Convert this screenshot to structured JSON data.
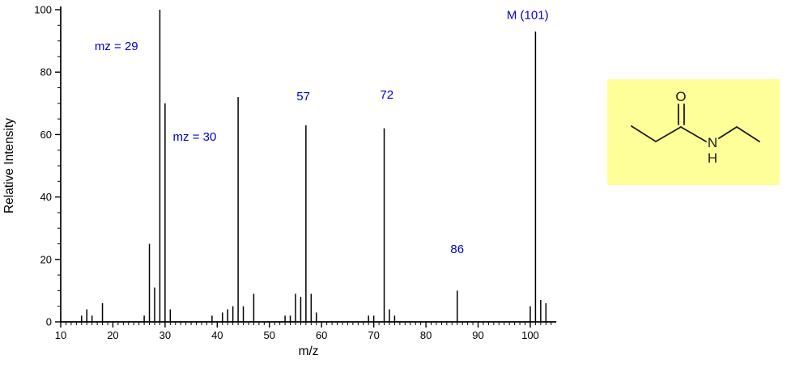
{
  "chart_data": {
    "type": "bar",
    "subtype": "mass-spectrum",
    "title": "",
    "xlabel": "m/z",
    "ylabel": "Relative Intensity",
    "xlim": [
      10,
      105
    ],
    "ylim": [
      0,
      100
    ],
    "x_ticks": [
      10,
      20,
      30,
      40,
      50,
      60,
      70,
      80,
      90,
      100
    ],
    "y_ticks": [
      0,
      20,
      40,
      60,
      80,
      100
    ],
    "x_minor_step": 1,
    "y_minor_step": 5,
    "grid": false,
    "legend": false,
    "axis_color": "#000000",
    "peak_color": "#000000",
    "annotation_color": "#0000cc",
    "peaks": [
      [
        14,
        2
      ],
      [
        15,
        4
      ],
      [
        16,
        2
      ],
      [
        18,
        6
      ],
      [
        26,
        2
      ],
      [
        27,
        25
      ],
      [
        28,
        11
      ],
      [
        29,
        100
      ],
      [
        30,
        70
      ],
      [
        31,
        4
      ],
      [
        39,
        2
      ],
      [
        41,
        3
      ],
      [
        42,
        4
      ],
      [
        43,
        5
      ],
      [
        44,
        72
      ],
      [
        45,
        5
      ],
      [
        47,
        9
      ],
      [
        53,
        2
      ],
      [
        54,
        2
      ],
      [
        55,
        9
      ],
      [
        56,
        8
      ],
      [
        57,
        63
      ],
      [
        58,
        9
      ],
      [
        59,
        3
      ],
      [
        69,
        2
      ],
      [
        70,
        2
      ],
      [
        72,
        62
      ],
      [
        73,
        4
      ],
      [
        74,
        2
      ],
      [
        86,
        10
      ],
      [
        100,
        5
      ],
      [
        101,
        93
      ],
      [
        102,
        7
      ],
      [
        103,
        6
      ]
    ],
    "annotations": [
      {
        "text": "mz = 29",
        "x": 16.5,
        "y": 87,
        "anchor": "start"
      },
      {
        "text": "mz = 30",
        "x": 31.5,
        "y": 58,
        "anchor": "start"
      },
      {
        "text": "57",
        "x": 56.5,
        "y": 71,
        "anchor": "middle"
      },
      {
        "text": "72",
        "x": 72.5,
        "y": 71.5,
        "anchor": "middle"
      },
      {
        "text": "86",
        "x": 86,
        "y": 22,
        "anchor": "middle"
      },
      {
        "text": "M (101)",
        "x": 99.5,
        "y": 97,
        "anchor": "middle"
      }
    ]
  },
  "structure": {
    "background": "#ffff99",
    "line_color": "#1a1a1a",
    "atoms": {
      "O": "O",
      "N": "N",
      "H": "H"
    }
  }
}
